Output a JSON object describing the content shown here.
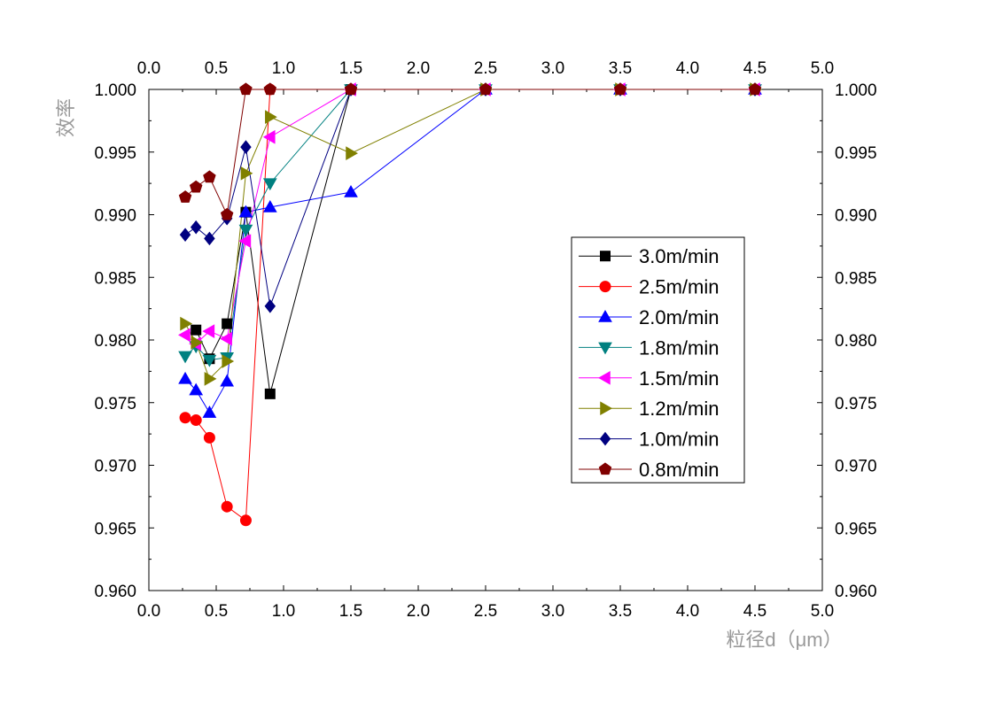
{
  "chart_data": {
    "type": "line",
    "xlabel": "粒径d（μm）",
    "ylabel": "效率",
    "xlim": [
      0,
      5
    ],
    "ylim": [
      0.96,
      1.0
    ],
    "x_ticks": [
      "0.0",
      "0.5",
      "1.0",
      "1.5",
      "2.0",
      "2.5",
      "3.0",
      "3.5",
      "4.0",
      "4.5",
      "5.0"
    ],
    "y_ticks": [
      "0.960",
      "0.965",
      "0.970",
      "0.975",
      "0.980",
      "0.985",
      "0.990",
      "0.995",
      "1.000"
    ],
    "grid": false,
    "legend_position": "right",
    "series": [
      {
        "name": "3.0m/min",
        "color": "#000000",
        "marker": "square",
        "points": [
          [
            0.35,
            0.9808
          ],
          [
            0.45,
            0.9785
          ],
          [
            0.58,
            0.9813
          ],
          [
            0.72,
            0.9902
          ],
          [
            0.9,
            0.9757
          ],
          [
            1.5,
            1.0
          ],
          [
            2.5,
            1.0
          ],
          [
            3.5,
            1.0
          ],
          [
            4.5,
            1.0
          ]
        ]
      },
      {
        "name": "2.5m/min",
        "color": "#ff0000",
        "marker": "circle",
        "points": [
          [
            0.27,
            0.9738
          ],
          [
            0.35,
            0.9736
          ],
          [
            0.45,
            0.9722
          ],
          [
            0.58,
            0.9667
          ],
          [
            0.72,
            0.9656
          ],
          [
            0.9,
            1.0
          ],
          [
            1.5,
            1.0
          ],
          [
            2.5,
            1.0
          ],
          [
            3.5,
            1.0
          ],
          [
            4.5,
            1.0
          ]
        ]
      },
      {
        "name": "2.0m/min",
        "color": "#0000ff",
        "marker": "triangle-up",
        "points": [
          [
            0.27,
            0.9769
          ],
          [
            0.35,
            0.976
          ],
          [
            0.45,
            0.9742
          ],
          [
            0.58,
            0.9767
          ],
          [
            0.72,
            0.9902
          ],
          [
            0.9,
            0.9906
          ],
          [
            1.5,
            0.9918
          ],
          [
            2.5,
            1.0
          ],
          [
            3.5,
            1.0
          ],
          [
            4.5,
            1.0
          ]
        ]
      },
      {
        "name": "1.8m/min",
        "color": "#008080",
        "marker": "triangle-down",
        "points": [
          [
            0.27,
            0.9787
          ],
          [
            0.35,
            0.9795
          ],
          [
            0.45,
            0.9784
          ],
          [
            0.58,
            0.9786
          ],
          [
            0.72,
            0.9888
          ],
          [
            0.9,
            0.9925
          ],
          [
            1.5,
            1.0
          ],
          [
            2.5,
            1.0
          ],
          [
            3.5,
            1.0
          ],
          [
            4.5,
            1.0
          ]
        ]
      },
      {
        "name": "1.5m/min",
        "color": "#ff00ff",
        "marker": "triangle-left",
        "points": [
          [
            0.27,
            0.9804
          ],
          [
            0.35,
            0.9797
          ],
          [
            0.45,
            0.9807
          ],
          [
            0.58,
            0.9801
          ],
          [
            0.72,
            0.9879
          ],
          [
            0.9,
            0.9962
          ],
          [
            1.5,
            1.0
          ],
          [
            2.5,
            1.0
          ],
          [
            3.5,
            1.0
          ],
          [
            4.5,
            1.0
          ]
        ]
      },
      {
        "name": "1.2m/min",
        "color": "#808000",
        "marker": "triangle-right",
        "points": [
          [
            0.27,
            0.9813
          ],
          [
            0.35,
            0.9798
          ],
          [
            0.45,
            0.9769
          ],
          [
            0.58,
            0.9783
          ],
          [
            0.72,
            0.9933
          ],
          [
            0.9,
            0.9978
          ],
          [
            1.5,
            0.9949
          ],
          [
            2.5,
            1.0
          ],
          [
            3.5,
            1.0
          ],
          [
            4.5,
            1.0
          ]
        ]
      },
      {
        "name": "1.0m/min",
        "color": "#000080",
        "marker": "diamond",
        "points": [
          [
            0.27,
            0.9884
          ],
          [
            0.35,
            0.989
          ],
          [
            0.45,
            0.9881
          ],
          [
            0.58,
            0.9897
          ],
          [
            0.72,
            0.9954
          ],
          [
            0.9,
            0.9827
          ],
          [
            1.5,
            1.0
          ],
          [
            2.5,
            1.0
          ],
          [
            3.5,
            1.0
          ],
          [
            4.5,
            1.0
          ]
        ]
      },
      {
        "name": "0.8m/min",
        "color": "#800000",
        "marker": "pentagon",
        "points": [
          [
            0.27,
            0.9914
          ],
          [
            0.35,
            0.9922
          ],
          [
            0.45,
            0.993
          ],
          [
            0.58,
            0.99
          ],
          [
            0.72,
            1.0
          ],
          [
            0.9,
            1.0
          ],
          [
            1.5,
            1.0
          ],
          [
            2.5,
            1.0
          ],
          [
            3.5,
            1.0
          ],
          [
            4.5,
            1.0
          ]
        ]
      }
    ]
  }
}
